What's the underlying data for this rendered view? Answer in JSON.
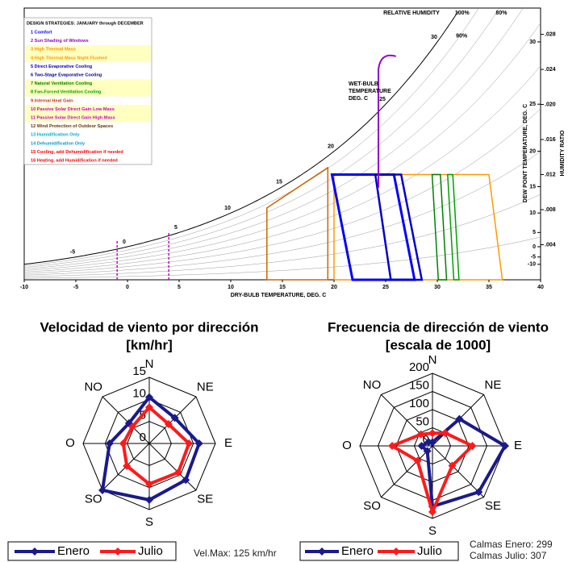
{
  "chart_data": [
    {
      "type": "psychrometric",
      "title": "DESIGN STRATEGIES: JANUARY through DECEMBER",
      "strategies": [
        {
          "label": "1 Comfort",
          "color": "#0000ff",
          "highlight": false
        },
        {
          "label": "2 Sun Shading of Windows",
          "color": "#9900cc",
          "highlight": false
        },
        {
          "label": "3 High Thermal Mass",
          "color": "#ff8c00",
          "highlight": true
        },
        {
          "label": "4 High Thermal Mass Night Flushed",
          "color": "#ff9900",
          "highlight": true
        },
        {
          "label": "5 Direct Evaporative Cooling",
          "color": "#0000cc",
          "highlight": false
        },
        {
          "label": "6 Two-Stage Evaporative Cooling",
          "color": "#000080",
          "highlight": false
        },
        {
          "label": "7 Natural Ventilation Cooling",
          "color": "#008000",
          "highlight": true
        },
        {
          "label": "8 Fan-Forced Ventilation Cooling",
          "color": "#00a000",
          "highlight": true
        },
        {
          "label": "9 Internal Heat Gain",
          "color": "#cc3300",
          "highlight": false
        },
        {
          "label": "10 Passive Solar Direct Gain Low Mass",
          "color": "#cc00cc",
          "highlight": true
        },
        {
          "label": "11 Passive Solar Direct Gain High Mass",
          "color": "#cc00cc",
          "highlight": true
        },
        {
          "label": "12 Wind Protection of Outdoor Spaces",
          "color": "#663300",
          "highlight": false
        },
        {
          "label": "13 Humidification Only",
          "color": "#00aacc",
          "highlight": false
        },
        {
          "label": "14 Dehumidification Only",
          "color": "#0099cc",
          "highlight": false
        },
        {
          "label": "15 Cooling, add Dehumidification if needed",
          "color": "#ff0000",
          "highlight": false
        },
        {
          "label": "16 Heating, add Humidification if needed",
          "color": "#ff0000",
          "highlight": false
        }
      ],
      "xlabel": "DRY-BULB TEMPERATURE, DEG. C",
      "xlim": [
        -10,
        40
      ],
      "xticks": [
        -10,
        -5,
        0,
        5,
        10,
        15,
        20,
        25,
        30,
        35,
        40
      ],
      "y2label": "HUMIDITY RATIO",
      "y2lim": [
        0,
        0.031
      ],
      "y2ticks": [
        {
          "value": 0.004,
          "label": ".004"
        },
        {
          "value": 0.008,
          "label": ".008"
        },
        {
          "value": 0.012,
          "label": ".012"
        },
        {
          "value": 0.016,
          "label": ".016"
        },
        {
          "value": 0.02,
          "label": ".020"
        },
        {
          "value": 0.024,
          "label": ".024"
        },
        {
          "value": 0.028,
          "label": ".028"
        }
      ],
      "dew_point_label": "DEW POINT TEMPERATURE, DEG. C",
      "dew_point_ticks": [
        -10,
        -5,
        0,
        5,
        10,
        15,
        20,
        25,
        30
      ],
      "wet_bulb_label": [
        "WET-BULB",
        "TEMPERATURE",
        "DEG. C"
      ],
      "wet_bulb_ticks": [
        -5,
        0,
        5,
        10,
        15,
        20,
        25,
        30
      ],
      "rh_label": "RELATIVE HUMIDITY",
      "rh_ticks": [
        {
          "value": 100,
          "label": "100%"
        },
        {
          "value": 80,
          "label": "80%"
        },
        {
          "value": 90,
          "label": "90%"
        }
      ]
    },
    {
      "type": "radar",
      "title": "Velocidad de viento por dirección",
      "subtitle": "[km/hr]",
      "categories": [
        "N",
        "NE",
        "E",
        "SE",
        "S",
        "SO",
        "O",
        "NO"
      ],
      "rlim": [
        0,
        15
      ],
      "rticks": [
        0,
        5,
        10,
        15
      ],
      "series": [
        {
          "name": "Enero",
          "color": "#1a1a8c",
          "values": [
            10.5,
            8.2,
            11.3,
            11.7,
            12.8,
            15,
            9,
            6.5
          ]
        },
        {
          "name": "Julio",
          "color": "#ff1a1a",
          "values": [
            8.2,
            6.2,
            9,
            9.3,
            9.2,
            7.2,
            5.9,
            5.4
          ]
        }
      ],
      "annotations": [
        "Vel.Max: 125 km/hr"
      ]
    },
    {
      "type": "radar",
      "title": "Frecuencia de dirección de viento",
      "subtitle": "[escala de 1000]",
      "categories": [
        "N",
        "NE",
        "E",
        "SE",
        "S",
        "SO",
        "O",
        "NO"
      ],
      "rlim": [
        0,
        200
      ],
      "rticks": [
        0,
        50,
        100,
        150,
        200
      ],
      "series": [
        {
          "name": "Enero",
          "color": "#1a1a8c",
          "values": [
            10,
            105,
            200,
            180,
            167,
            20,
            30,
            15
          ]
        },
        {
          "name": "Julio",
          "color": "#ff1a1a",
          "values": [
            35,
            50,
            110,
            77,
            182,
            58,
            111,
            45
          ]
        }
      ],
      "annotations": [
        "Calmas Enero: 299",
        "Calmas Julio: 307"
      ]
    }
  ]
}
